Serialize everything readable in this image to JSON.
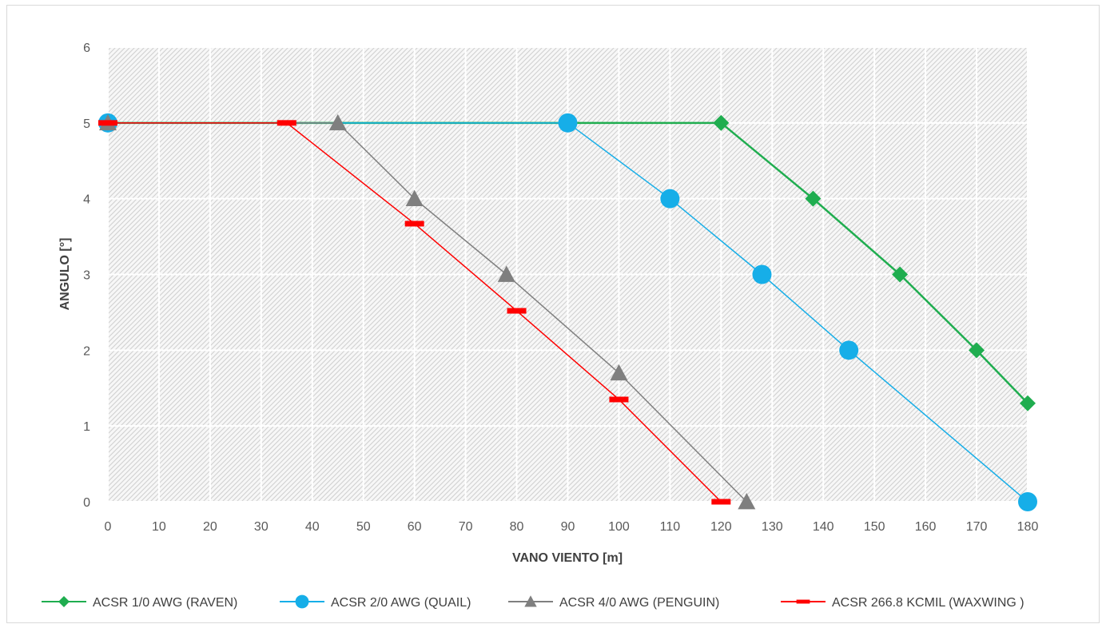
{
  "chart_data": {
    "type": "line",
    "xlabel": "VANO VIENTO [m]",
    "ylabel": "ANGULO [°]",
    "xlim": [
      0,
      180
    ],
    "ylim": [
      0,
      6
    ],
    "x_ticks": [
      0,
      10,
      20,
      30,
      40,
      50,
      60,
      70,
      80,
      90,
      100,
      110,
      120,
      130,
      140,
      150,
      160,
      170,
      180
    ],
    "y_ticks": [
      0,
      1,
      2,
      3,
      4,
      5,
      6
    ],
    "grid": true,
    "legend_position": "bottom",
    "series": [
      {
        "name": "ACSR 1/0 AWG (RAVEN)",
        "color": "#1fad4f",
        "marker": "diamond",
        "x": [
          0,
          120,
          138,
          155,
          170,
          180
        ],
        "y": [
          5,
          5,
          4,
          3,
          2,
          1.3
        ]
      },
      {
        "name": "ACSR 2/0 AWG (QUAIL)",
        "color": "#16aee8",
        "marker": "circle",
        "x": [
          0,
          90,
          110,
          128,
          145,
          180
        ],
        "y": [
          5,
          5,
          4,
          3,
          2,
          0
        ]
      },
      {
        "name": "ACSR 4/0 AWG (PENGUIN)",
        "color": "#7f7f7f",
        "marker": "triangle",
        "x": [
          0,
          45,
          60,
          78,
          100,
          125
        ],
        "y": [
          5,
          5,
          4,
          3,
          1.7,
          0
        ]
      },
      {
        "name": "ACSR 266.8 KCMIL (WAXWING )",
        "color": "#ff0000",
        "marker": "dash",
        "x": [
          0,
          35,
          60,
          80,
          100,
          120
        ],
        "y": [
          5,
          5,
          3.67,
          2.52,
          1.35,
          0
        ]
      }
    ]
  }
}
